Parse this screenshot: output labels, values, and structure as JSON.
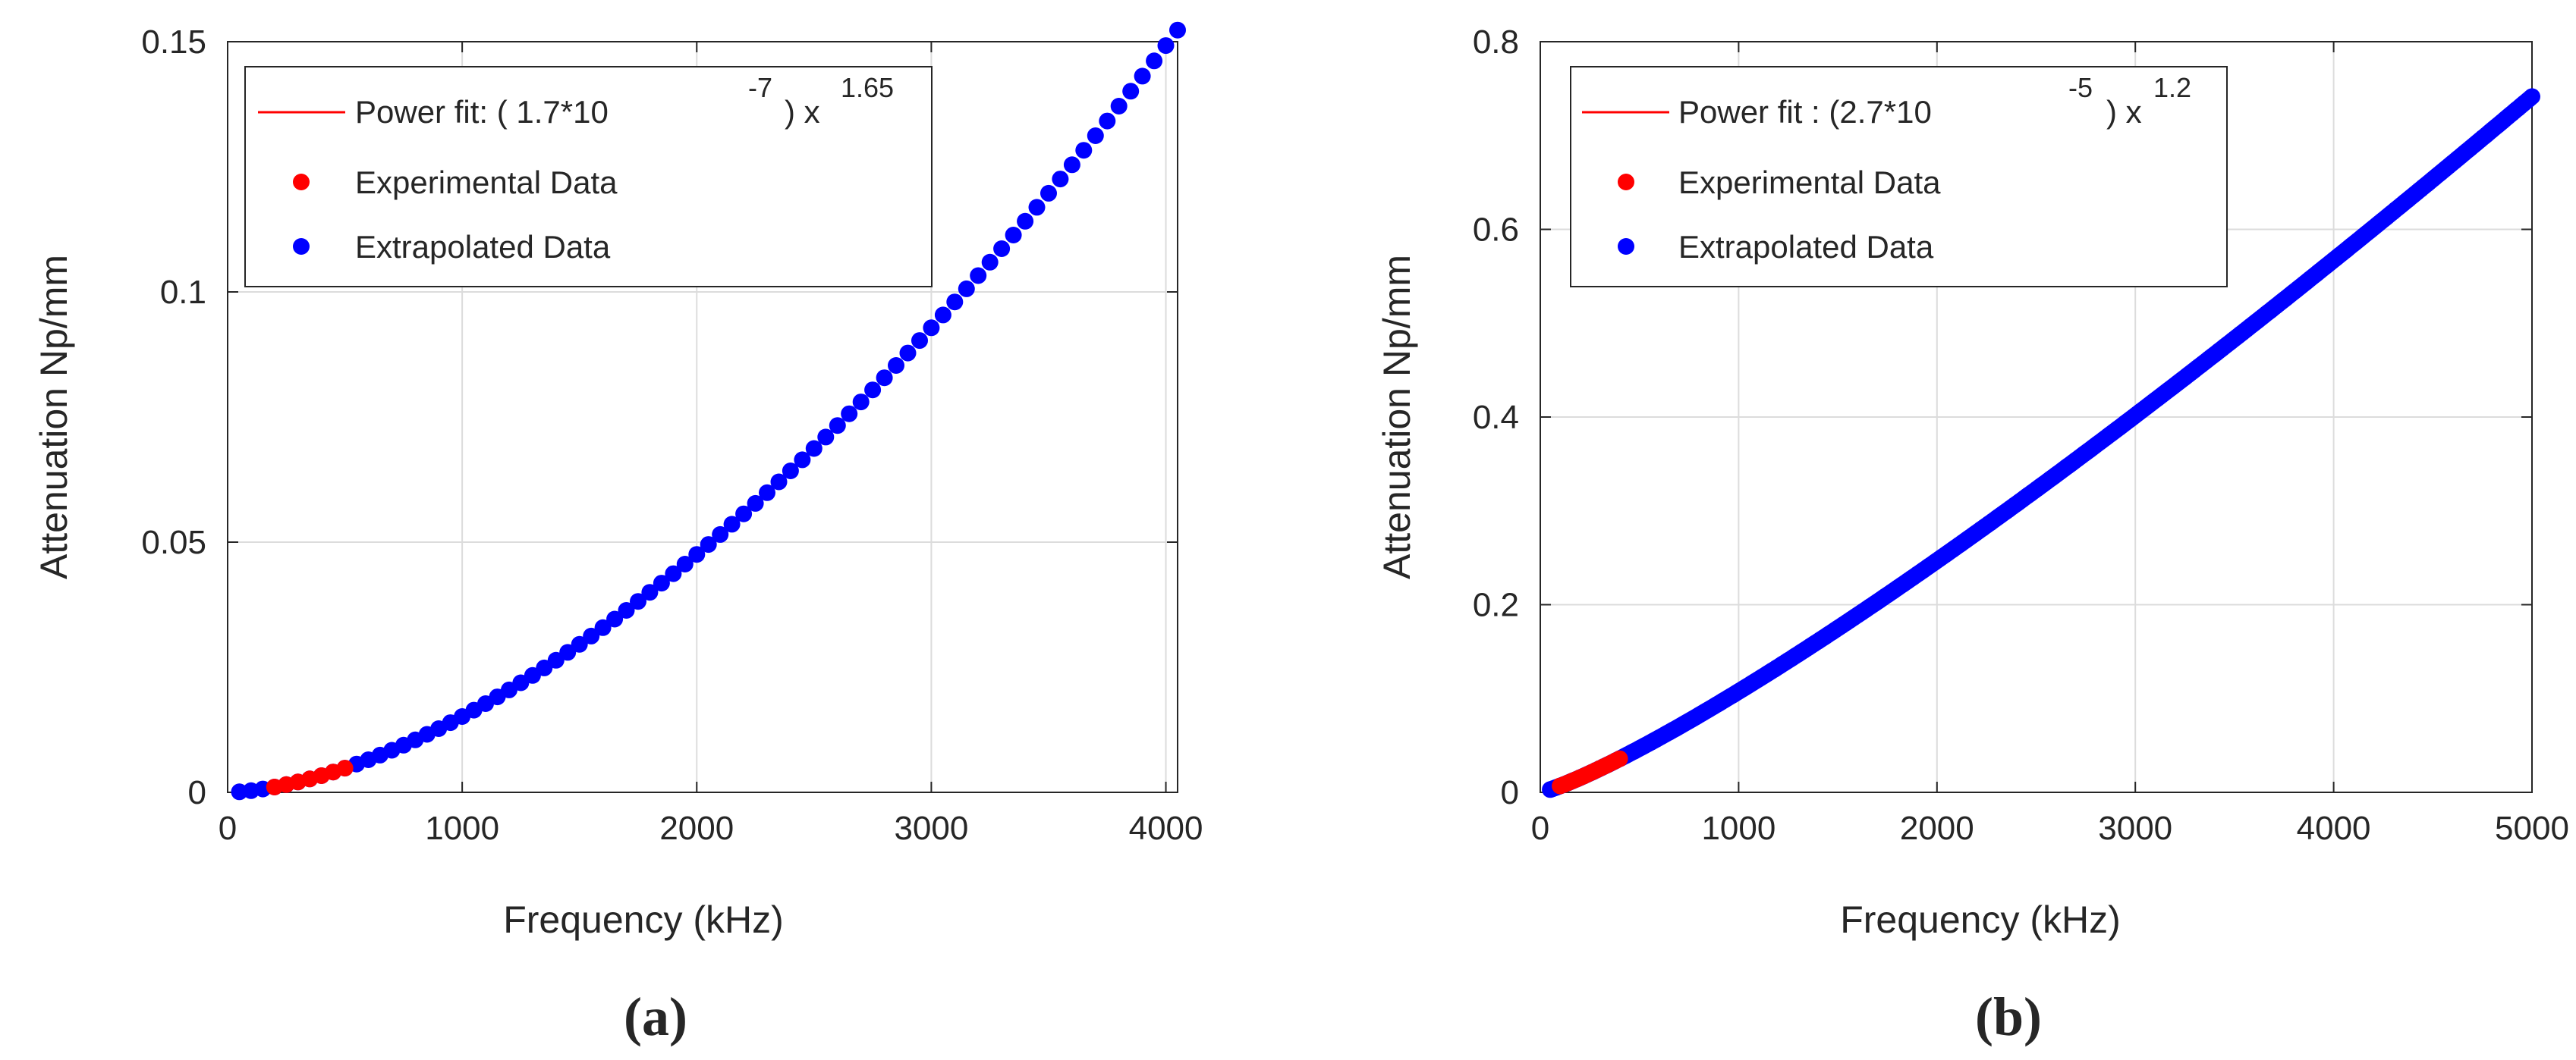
{
  "chart_data": [
    {
      "type": "scatter",
      "xlabel": "Frequency (kHz)",
      "ylabel": "Attenuation Np/mm",
      "xlim": [
        0,
        4050
      ],
      "ylim": [
        0,
        0.15
      ],
      "xticks": [
        0,
        1000,
        2000,
        3000,
        4000
      ],
      "yticks": [
        0,
        0.05,
        0.1,
        0.15
      ],
      "xtick_labels": [
        "0",
        "1000",
        "2000",
        "3000",
        "4000"
      ],
      "ytick_labels": [
        "0",
        "0.05",
        "0.1",
        "0.15"
      ],
      "grid": true,
      "legend_position": "top-left",
      "panel_label": "(a)",
      "fit": {
        "coefficient": 1.7e-07,
        "exponent": 1.65
      },
      "legend": {
        "fit_label_prefix": "Power fit: ( 1.7*10",
        "fit_label_exp": "-7",
        "fit_label_mid": ") x",
        "fit_label_power": "1.65",
        "experimental_label": "Experimental Data",
        "extrapolated_label": "Extrapolated Data"
      },
      "series": [
        {
          "name": "Extrapolated Data",
          "color": "#0000ff",
          "x_start": 50,
          "x_end": 4050,
          "x_step": 50
        },
        {
          "name": "Experimental Data",
          "color": "#ff0000",
          "x_start": 200,
          "x_end": 500,
          "x_step": 50
        }
      ]
    },
    {
      "type": "scatter",
      "xlabel": "Frequency (kHz)",
      "ylabel": "Attenuation Np/mm",
      "xlim": [
        0,
        5000
      ],
      "ylim": [
        0,
        0.8
      ],
      "xticks": [
        0,
        1000,
        2000,
        3000,
        4000,
        5000
      ],
      "yticks": [
        0,
        0.2,
        0.4,
        0.6,
        0.8
      ],
      "xtick_labels": [
        "0",
        "1000",
        "2000",
        "3000",
        "4000",
        "5000"
      ],
      "ytick_labels": [
        "0",
        "0.2",
        "0.4",
        "0.6",
        "0.8"
      ],
      "grid": true,
      "legend_position": "top-left",
      "panel_label": "(b)",
      "fit": {
        "coefficient": 2.7e-05,
        "exponent": 1.2
      },
      "legend": {
        "fit_label_prefix": "Power fit : (2.7*10",
        "fit_label_exp": "-5",
        "fit_label_mid": ") x",
        "fit_label_power": "1.2",
        "experimental_label": "Experimental Data",
        "extrapolated_label": "Extrapolated Data"
      },
      "series": [
        {
          "name": "Extrapolated Data",
          "color": "#0000ff",
          "x_start": 50,
          "x_end": 5000,
          "x_step": 10
        },
        {
          "name": "Experimental Data",
          "color": "#ff0000",
          "x_start": 100,
          "x_end": 400,
          "x_step": 20
        }
      ]
    }
  ]
}
